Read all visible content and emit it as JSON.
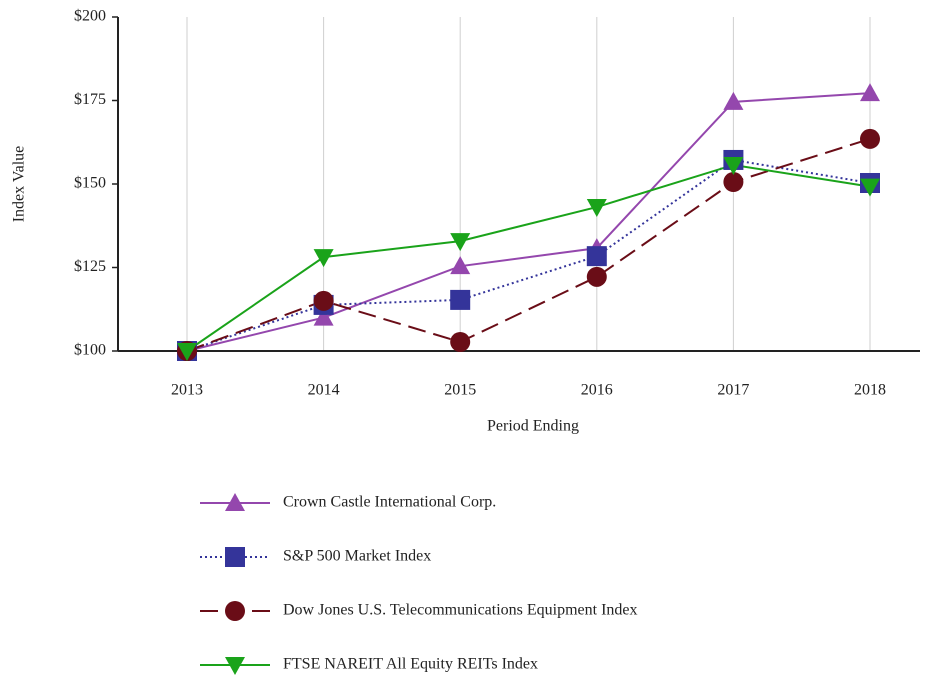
{
  "chart_data": {
    "type": "line",
    "x_label": "Period Ending",
    "y_label": "Index Value",
    "categories": [
      "2013",
      "2014",
      "2015",
      "2016",
      "2017",
      "2018"
    ],
    "ylim": [
      100,
      200
    ],
    "yticks": [
      {
        "value": 100,
        "label": "$100"
      },
      {
        "value": 125,
        "label": "$125"
      },
      {
        "value": 150,
        "label": "$150"
      },
      {
        "value": 175,
        "label": "$175"
      },
      {
        "value": 200,
        "label": "$200"
      }
    ],
    "grid": "x",
    "legend": "bottom",
    "series": [
      {
        "name": "Crown Castle International Corp.",
        "color": "#9447ad",
        "line_style": "solid",
        "marker": "triangle-up",
        "values": [
          100,
          110,
          125.4,
          130.8,
          174.6,
          177.2
        ]
      },
      {
        "name": "S&P 500 Market Index",
        "color": "#34349a",
        "line_style": "dotted",
        "marker": "square",
        "values": [
          100,
          113.8,
          115.3,
          128.4,
          157.2,
          150.3
        ]
      },
      {
        "name": "Dow Jones U.S. Telecommunications Equipment Index",
        "color": "#6a0d17",
        "line_style": "dashed",
        "marker": "circle",
        "values": [
          100,
          115,
          102.7,
          122.2,
          150.6,
          163.5
        ]
      },
      {
        "name": "FTSE NAREIT All Equity REITs Index",
        "color": "#1aa31a",
        "line_style": "solid",
        "marker": "triangle-down",
        "values": [
          100,
          128.1,
          132.9,
          143.1,
          155.7,
          149.2
        ]
      }
    ]
  }
}
